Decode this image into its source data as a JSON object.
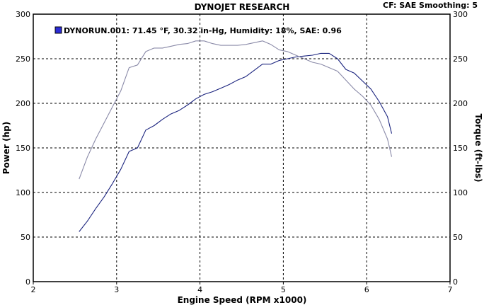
{
  "header": {
    "title": "DYNOJET RESEARCH",
    "status": "CF: SAE  Smoothing: 5"
  },
  "colors": {
    "power": "#1a237e",
    "torque": "#8a8aa8",
    "legend_swatch": "#2b2bd6"
  },
  "chart_data": {
    "type": "line",
    "title": "DYNOJET RESEARCH",
    "xlabel": "Engine Speed (RPM x1000)",
    "ylabel_left": "Power (hp)",
    "ylabel_right": "Torque (ft-lbs)",
    "xlim": [
      2,
      7
    ],
    "ylim_left": [
      0,
      300
    ],
    "ylim_right": [
      0,
      300
    ],
    "x_ticks": [
      "2",
      "3",
      "4",
      "5",
      "6",
      "7"
    ],
    "y_ticks_left": [
      "0",
      "50",
      "100",
      "150",
      "200",
      "250",
      "300"
    ],
    "y_ticks_right": [
      "0",
      "50",
      "100",
      "150",
      "200",
      "250",
      "300"
    ],
    "grid": true,
    "legend_position": "top-left",
    "legend": "DYNORUN.001: 71.45 °F, 30.32 in-Hg, Humidity: 18%, SAE: 0.96",
    "series": [
      {
        "axis": "left",
        "x": [
          2.55,
          2.65,
          2.75,
          2.85,
          2.95,
          3.05,
          3.15,
          3.25,
          3.35,
          3.45,
          3.55,
          3.65,
          3.75,
          3.85,
          3.95,
          4.05,
          4.15,
          4.25,
          4.35,
          4.45,
          4.55,
          4.65,
          4.75,
          4.85,
          4.95,
          5.05,
          5.15,
          5.25,
          5.35,
          5.45,
          5.55,
          5.65,
          5.75,
          5.85,
          5.95,
          6.05,
          6.15,
          6.25,
          6.3
        ],
        "values": [
          56,
          68,
          82,
          95,
          110,
          126,
          146,
          150,
          170,
          175,
          182,
          188,
          192,
          198,
          205,
          210,
          213,
          217,
          221,
          226,
          230,
          237,
          244,
          244,
          248,
          250,
          252,
          253,
          254,
          256,
          256,
          250,
          238,
          234,
          225,
          216,
          202,
          185,
          166
        ]
      },
      {
        "axis": "right",
        "x": [
          2.55,
          2.65,
          2.75,
          2.85,
          2.95,
          3.05,
          3.15,
          3.25,
          3.35,
          3.45,
          3.55,
          3.65,
          3.75,
          3.85,
          3.95,
          4.05,
          4.15,
          4.25,
          4.35,
          4.45,
          4.55,
          4.65,
          4.75,
          4.85,
          4.95,
          5.05,
          5.15,
          5.25,
          5.35,
          5.45,
          5.55,
          5.65,
          5.75,
          5.85,
          5.95,
          6.05,
          6.15,
          6.25,
          6.3
        ],
        "values": [
          115,
          140,
          160,
          178,
          196,
          214,
          240,
          243,
          258,
          262,
          262,
          264,
          266,
          267,
          270,
          270,
          267,
          265,
          265,
          265,
          266,
          268,
          270,
          266,
          260,
          258,
          254,
          250,
          246,
          244,
          240,
          236,
          226,
          216,
          208,
          198,
          182,
          160,
          140
        ]
      }
    ]
  }
}
